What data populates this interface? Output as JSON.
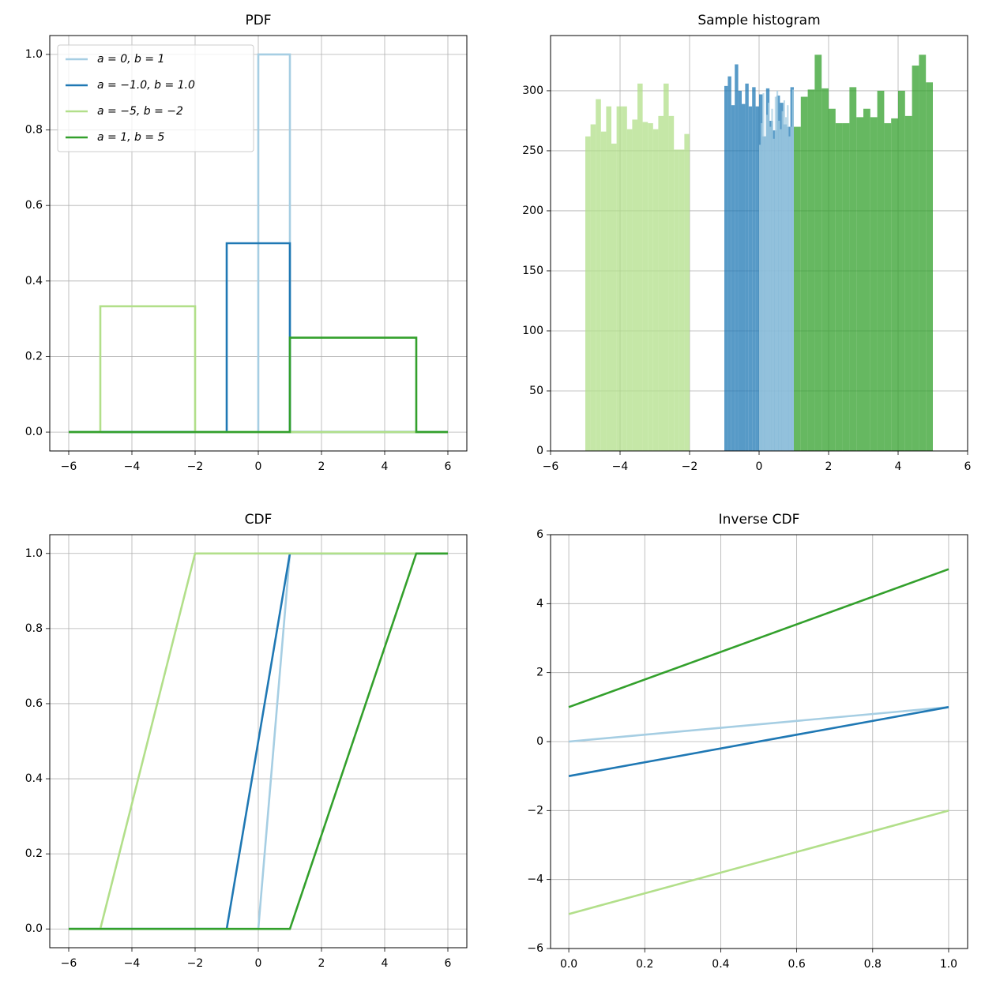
{
  "chart_data": [
    {
      "type": "line",
      "title": "PDF",
      "legend": "upper left",
      "grid": true,
      "xlim": [
        -6.6,
        6.6
      ],
      "ylim": [
        -0.05,
        1.05
      ],
      "xticks": [
        {
          "value": -6,
          "label": "−6"
        },
        {
          "value": -4,
          "label": "−4"
        },
        {
          "value": -2,
          "label": "−2"
        },
        0,
        2,
        4,
        6
      ],
      "yticks": [
        {
          "value": 0,
          "label": "0.0"
        },
        0.2,
        0.4,
        0.6,
        0.8,
        {
          "value": 1,
          "label": "1.0"
        }
      ],
      "series": [
        {
          "name": "a = 0, b = 1",
          "color": "#a6cee3",
          "x": [
            -6,
            0,
            0,
            1,
            1,
            6
          ],
          "values": [
            0,
            0,
            1,
            1,
            0,
            0
          ]
        },
        {
          "name": "a = −1.0, b = 1.0",
          "color": "#1f78b4",
          "x": [
            -6,
            -1,
            -1,
            1,
            1,
            6
          ],
          "values": [
            0,
            0,
            0.5,
            0.5,
            0,
            0
          ]
        },
        {
          "name": "a = −5, b = −2",
          "color": "#b2df8a",
          "x": [
            -6,
            -5,
            -5,
            -2,
            -2,
            6
          ],
          "values": [
            0,
            0,
            0.333,
            0.333,
            0,
            0
          ]
        },
        {
          "name": "a = 1, b = 5",
          "color": "#33a02c",
          "x": [
            -6,
            1,
            1,
            5,
            5,
            6
          ],
          "values": [
            0,
            0,
            0.25,
            0.25,
            0,
            0
          ]
        }
      ]
    },
    {
      "type": "histogram",
      "title": "Sample histogram",
      "grid": true,
      "opacity": 0.75,
      "xlim": [
        -6,
        6
      ],
      "ylim": [
        0,
        346
      ],
      "xticks": [
        {
          "value": -6,
          "label": "−6"
        },
        {
          "value": -4,
          "label": "−4"
        },
        {
          "value": -2,
          "label": "−2"
        },
        0,
        2,
        4,
        6
      ],
      "yticks": [
        0,
        50,
        100,
        150,
        200,
        250,
        300
      ],
      "series": [
        {
          "color": "#1f78b4",
          "bins": [
            -1,
            -0.9,
            -0.8,
            -0.7,
            -0.6,
            -0.5,
            -0.4,
            -0.3,
            -0.2,
            -0.1,
            0,
            0.1,
            0.2,
            0.3,
            0.4,
            0.5,
            0.6,
            0.7,
            0.8,
            0.9,
            1
          ],
          "values": [
            304,
            312,
            288,
            322,
            300,
            289,
            306,
            287,
            303,
            287,
            297,
            262,
            302,
            275,
            267,
            296,
            290,
            272,
            270,
            303
          ]
        },
        {
          "color": "#a6cee3",
          "bins": [
            0,
            0.05,
            0.1,
            0.15,
            0.2,
            0.25,
            0.3,
            0.35,
            0.4,
            0.45,
            0.5,
            0.55,
            0.6,
            0.65,
            0.7,
            0.75,
            0.8,
            0.85,
            0.9,
            0.95,
            1
          ],
          "values": [
            255,
            273,
            298,
            262,
            280,
            290,
            270,
            285,
            260,
            295,
            300,
            275,
            268,
            283,
            292,
            278,
            288,
            262,
            270,
            301
          ]
        },
        {
          "color": "#b2df8a",
          "bins": [
            -5,
            -4.85,
            -4.7,
            -4.55,
            -4.4,
            -4.25,
            -4.1,
            -3.95,
            -3.8,
            -3.65,
            -3.5,
            -3.35,
            -3.2,
            -3.05,
            -2.9,
            -2.75,
            -2.6,
            -2.45,
            -2.3,
            -2.15,
            -2
          ],
          "values": [
            262,
            272,
            293,
            266,
            287,
            256,
            287,
            287,
            268,
            276,
            306,
            274,
            273,
            268,
            279,
            306,
            279,
            251,
            251,
            264
          ]
        },
        {
          "color": "#33a02c",
          "bins": [
            1,
            1.2,
            1.4,
            1.6,
            1.8,
            2,
            2.2,
            2.4,
            2.6,
            2.8,
            3,
            3.2,
            3.4,
            3.6,
            3.8,
            4,
            4.2,
            4.4,
            4.6,
            4.8,
            5
          ],
          "values": [
            270,
            295,
            301,
            330,
            302,
            285,
            273,
            273,
            303,
            278,
            285,
            278,
            300,
            273,
            277,
            300,
            279,
            321,
            330,
            307
          ]
        }
      ]
    },
    {
      "type": "line",
      "title": "CDF",
      "grid": true,
      "xlim": [
        -6.6,
        6.6
      ],
      "ylim": [
        -0.05,
        1.05
      ],
      "xticks": [
        {
          "value": -6,
          "label": "−6"
        },
        {
          "value": -4,
          "label": "−4"
        },
        {
          "value": -2,
          "label": "−2"
        },
        0,
        2,
        4,
        6
      ],
      "yticks": [
        {
          "value": 0,
          "label": "0.0"
        },
        0.2,
        0.4,
        0.6,
        0.8,
        {
          "value": 1,
          "label": "1.0"
        }
      ],
      "series": [
        {
          "color": "#a6cee3",
          "x": [
            -6,
            0,
            1,
            6
          ],
          "values": [
            0,
            0,
            1,
            1
          ]
        },
        {
          "color": "#1f78b4",
          "x": [
            -6,
            -1,
            1,
            6
          ],
          "values": [
            0,
            0,
            1,
            1
          ]
        },
        {
          "color": "#b2df8a",
          "x": [
            -6,
            -5,
            -2,
            6
          ],
          "values": [
            0,
            0,
            1,
            1
          ]
        },
        {
          "color": "#33a02c",
          "x": [
            -6,
            1,
            5,
            6
          ],
          "values": [
            0,
            0,
            1,
            1
          ]
        }
      ]
    },
    {
      "type": "line",
      "title": "Inverse CDF",
      "grid": true,
      "xlim": [
        -0.048,
        1.05
      ],
      "ylim": [
        -6,
        6
      ],
      "xticks": [
        {
          "value": 0,
          "label": "0.0"
        },
        0.2,
        0.4,
        0.6,
        0.8,
        {
          "value": 1,
          "label": "1.0"
        }
      ],
      "yticks": [
        {
          "value": -6,
          "label": "−6"
        },
        {
          "value": -4,
          "label": "−4"
        },
        {
          "value": -2,
          "label": "−2"
        },
        0,
        2,
        4,
        6
      ],
      "series": [
        {
          "color": "#a6cee3",
          "x": [
            0,
            1
          ],
          "values": [
            0,
            1
          ]
        },
        {
          "color": "#1f78b4",
          "x": [
            0,
            1
          ],
          "values": [
            -1,
            1
          ]
        },
        {
          "color": "#b2df8a",
          "x": [
            0,
            1
          ],
          "values": [
            -5,
            -2
          ]
        },
        {
          "color": "#33a02c",
          "x": [
            0,
            1
          ],
          "values": [
            1,
            5
          ]
        }
      ]
    }
  ]
}
